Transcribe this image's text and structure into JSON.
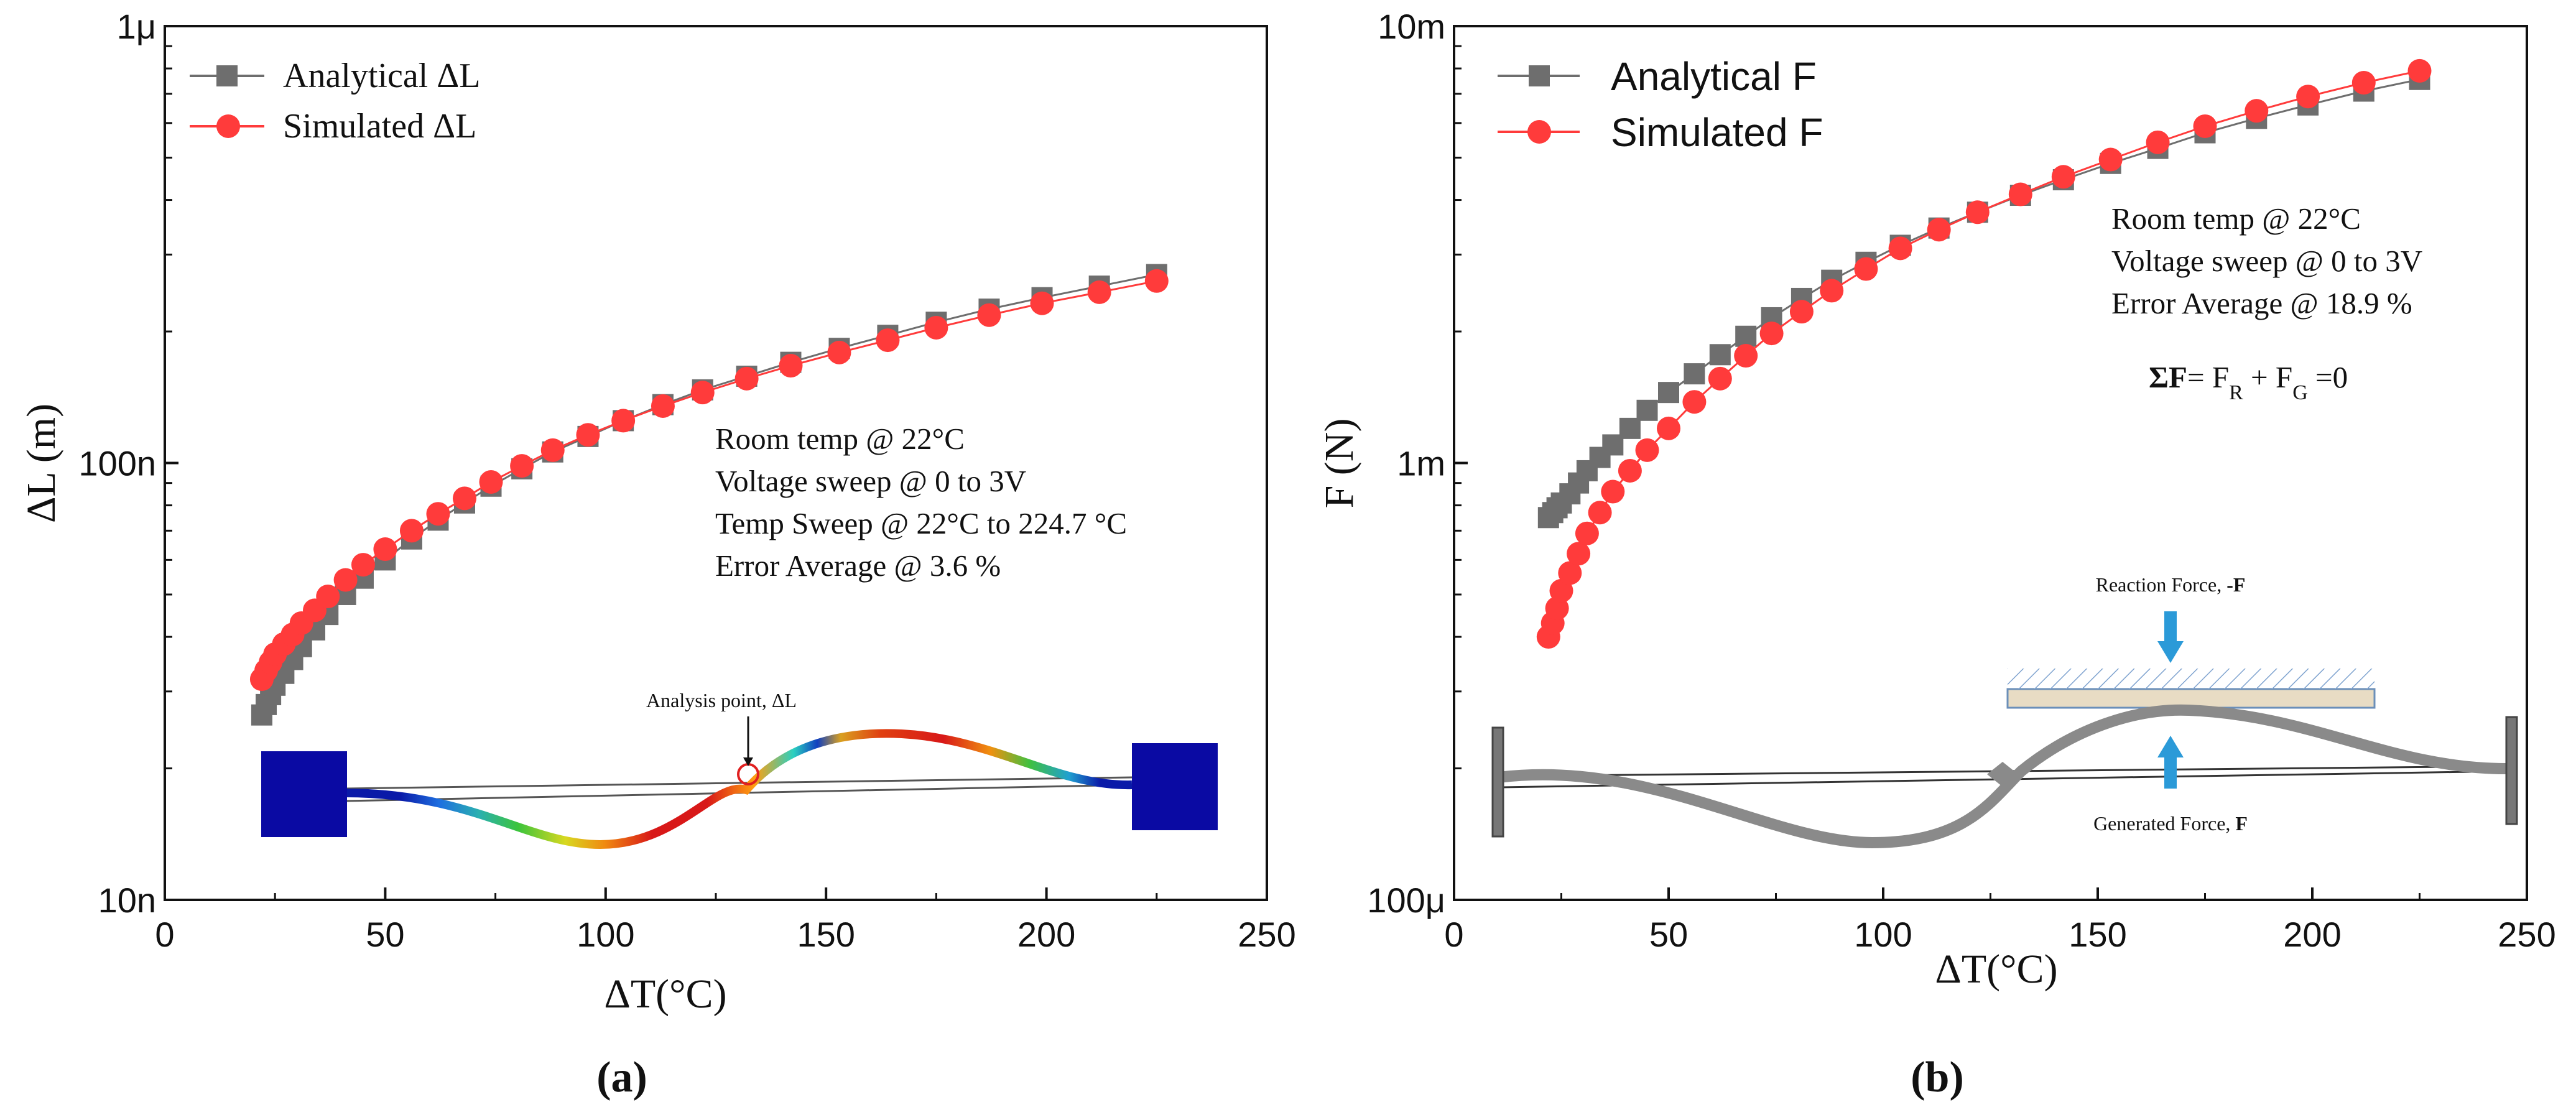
{
  "chart_data": [
    {
      "type": "scatter",
      "xlabel": "ΔT(°C)",
      "ylabel": "ΔL (m)",
      "xlim": [
        0,
        250
      ],
      "ylim": [
        1e-08,
        1e-06
      ],
      "y_scale": "log",
      "x_ticks": [
        0,
        50,
        100,
        150,
        200,
        250
      ],
      "x_tick_labels": [
        "0",
        "50",
        "100",
        "150",
        "200",
        "250"
      ],
      "y_ticks": [
        1e-08,
        1e-07,
        1e-06
      ],
      "y_tick_labels": [
        "10n",
        "100n",
        "1μ"
      ],
      "grid": false,
      "legend_position": "top-left",
      "x": [
        22,
        23,
        24,
        25,
        27,
        29,
        31,
        34,
        37,
        41,
        45,
        50,
        56,
        62,
        68,
        74,
        81,
        88,
        96,
        104,
        113,
        122,
        132,
        142,
        153,
        164,
        175,
        187,
        199,
        212,
        225
      ],
      "series": [
        {
          "name": "Analytical ΔL",
          "color": "#6e6e6e",
          "marker": "square",
          "values": [
            2.65e-08,
            2.8e-08,
            2.95e-08,
            3.1e-08,
            3.3e-08,
            3.55e-08,
            3.8e-08,
            4.15e-08,
            4.5e-08,
            5e-08,
            5.45e-08,
            6e-08,
            6.7e-08,
            7.4e-08,
            8.1e-08,
            8.85e-08,
            9.7e-08,
            1.06e-07,
            1.15e-07,
            1.25e-07,
            1.36e-07,
            1.47e-07,
            1.58e-07,
            1.7e-07,
            1.83e-07,
            1.96e-07,
            2.1e-07,
            2.25e-07,
            2.39e-07,
            2.54e-07,
            2.7e-07
          ]
        },
        {
          "name": "Simulated ΔL",
          "color": "#ff3b3b",
          "marker": "circle",
          "values": [
            3.2e-08,
            3.35e-08,
            3.5e-08,
            3.65e-08,
            3.85e-08,
            4.05e-08,
            4.3e-08,
            4.6e-08,
            4.95e-08,
            5.4e-08,
            5.85e-08,
            6.35e-08,
            7e-08,
            7.65e-08,
            8.3e-08,
            9.05e-08,
            9.85e-08,
            1.07e-07,
            1.16e-07,
            1.25e-07,
            1.35e-07,
            1.45e-07,
            1.56e-07,
            1.67e-07,
            1.79e-07,
            1.91e-07,
            2.04e-07,
            2.18e-07,
            2.32e-07,
            2.46e-07,
            2.61e-07
          ]
        }
      ],
      "annotations": [
        "Room temp @ 22°C",
        "Voltage sweep @ 0 to 3V",
        "Temp Sweep @ 22°C to 224.7 °C",
        "Error Average @ 3.6 %"
      ],
      "inset_label": "Analysis point, ΔL",
      "panel_label": "(a)"
    },
    {
      "type": "scatter",
      "xlabel": "ΔT(°C)",
      "ylabel": "F (N)",
      "xlim": [
        0,
        250
      ],
      "ylim": [
        0.0001,
        0.01
      ],
      "y_scale": "log",
      "x_ticks": [
        0,
        50,
        100,
        150,
        200,
        250
      ],
      "x_tick_labels": [
        "0",
        "50",
        "100",
        "150",
        "200",
        "250"
      ],
      "y_ticks": [
        0.0001,
        0.001,
        0.01
      ],
      "y_tick_labels": [
        "100μ",
        "1m",
        "10m"
      ],
      "grid": false,
      "legend_position": "top-left",
      "x": [
        22,
        23,
        24,
        25,
        27,
        29,
        31,
        34,
        37,
        41,
        45,
        50,
        56,
        62,
        68,
        74,
        81,
        88,
        96,
        104,
        113,
        122,
        132,
        142,
        153,
        164,
        175,
        187,
        199,
        212,
        225
      ],
      "series": [
        {
          "name": "Analytical F",
          "color": "#6e6e6e",
          "marker": "square",
          "values": [
            0.00075,
            0.00077,
            0.00079,
            0.00081,
            0.00085,
            0.0009,
            0.00096,
            0.00103,
            0.0011,
            0.0012,
            0.00132,
            0.00145,
            0.0016,
            0.00177,
            0.00195,
            0.00215,
            0.00238,
            0.00262,
            0.00288,
            0.00315,
            0.00345,
            0.00375,
            0.0041,
            0.00445,
            0.00485,
            0.00525,
            0.0057,
            0.00615,
            0.0066,
            0.0071,
            0.00755
          ]
        },
        {
          "name": "Simulated F",
          "color": "#ff3b3b",
          "marker": "circle",
          "values": [
            0.0004,
            0.00043,
            0.000465,
            0.00051,
            0.00056,
            0.00062,
            0.00069,
            0.00077,
            0.00086,
            0.00096,
            0.00107,
            0.0012,
            0.00138,
            0.00156,
            0.00176,
            0.00198,
            0.00222,
            0.00248,
            0.00278,
            0.0031,
            0.00342,
            0.00375,
            0.00412,
            0.00452,
            0.00495,
            0.00542,
            0.0059,
            0.0064,
            0.0069,
            0.00742,
            0.0079
          ]
        }
      ],
      "annotations": [
        "Room temp @ 22°C",
        "Voltage sweep @ 0 to 3V",
        "Error Average @ 18.9 %"
      ],
      "equation": {
        "lhs": "ΣF",
        "eq": "= F",
        "sub1": "R",
        "plus": " + F",
        "sub2": "G",
        "rhs": " =0"
      },
      "inset_labels": {
        "reaction_prefix": "Reaction Force, ",
        "reaction_var": "-F",
        "generated_prefix": "Generated Force, ",
        "generated_var": "F"
      },
      "panel_label": "(b)"
    }
  ]
}
